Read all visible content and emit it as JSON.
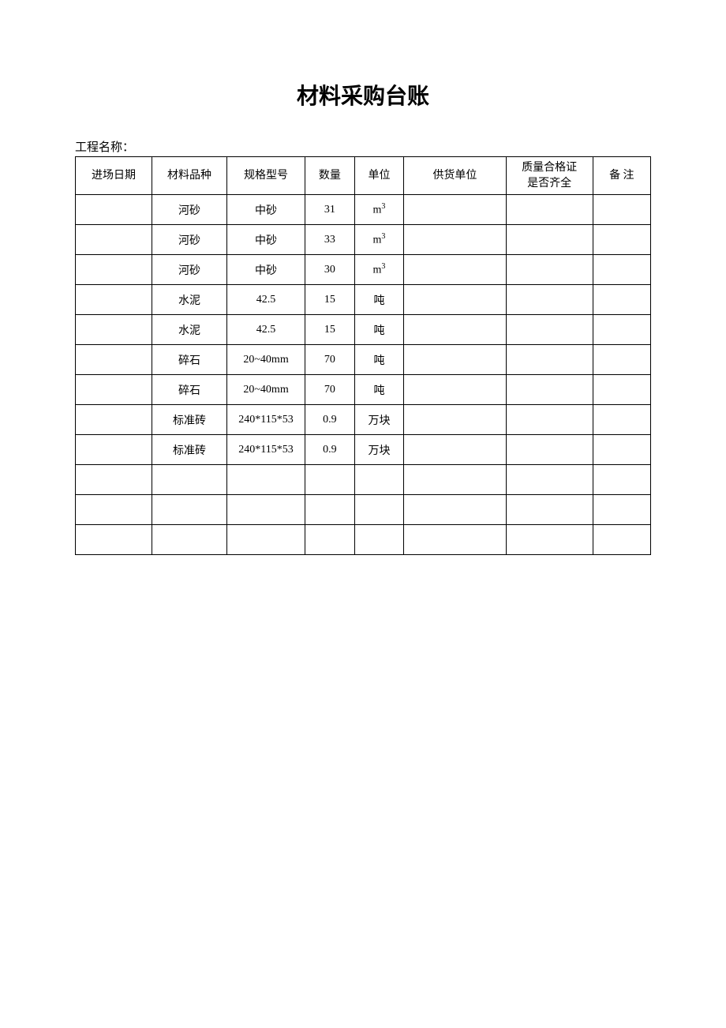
{
  "title": "材料采购台账",
  "project_label": "工程名称：",
  "table": {
    "columns": [
      "进场日期",
      "材料品种",
      "规格型号",
      "数量",
      "单位",
      "供货单位",
      "质量合格证\n是否齐全",
      "备  注"
    ],
    "rows": [
      {
        "date": "",
        "material": "河砂",
        "spec": "中砂",
        "qty": "31",
        "unit_html": "m³",
        "supplier": "",
        "cert": "",
        "note": ""
      },
      {
        "date": "",
        "material": "河砂",
        "spec": "中砂",
        "qty": "33",
        "unit_html": "m³",
        "supplier": "",
        "cert": "",
        "note": ""
      },
      {
        "date": "",
        "material": "河砂",
        "spec": "中砂",
        "qty": "30",
        "unit_html": "m³",
        "supplier": "",
        "cert": "",
        "note": ""
      },
      {
        "date": "",
        "material": "水泥",
        "spec": "42.5",
        "qty": "15",
        "unit_html": "吨",
        "supplier": "",
        "cert": "",
        "note": ""
      },
      {
        "date": "",
        "material": "水泥",
        "spec": "42.5",
        "qty": "15",
        "unit_html": "吨",
        "supplier": "",
        "cert": "",
        "note": ""
      },
      {
        "date": "",
        "material": "碎石",
        "spec": "20~40mm",
        "qty": "70",
        "unit_html": "吨",
        "supplier": "",
        "cert": "",
        "note": ""
      },
      {
        "date": "",
        "material": "碎石",
        "spec": "20~40mm",
        "qty": "70",
        "unit_html": "吨",
        "supplier": "",
        "cert": "",
        "note": ""
      },
      {
        "date": "",
        "material": "标准砖",
        "spec": "240*115*53",
        "qty": "0.9",
        "unit_html": "万块",
        "supplier": "",
        "cert": "",
        "note": ""
      },
      {
        "date": "",
        "material": "标准砖",
        "spec": "240*115*53",
        "qty": "0.9",
        "unit_html": "万块",
        "supplier": "",
        "cert": "",
        "note": ""
      },
      {
        "date": "",
        "material": "",
        "spec": "",
        "qty": "",
        "unit_html": "",
        "supplier": "",
        "cert": "",
        "note": ""
      },
      {
        "date": "",
        "material": "",
        "spec": "",
        "qty": "",
        "unit_html": "",
        "supplier": "",
        "cert": "",
        "note": ""
      },
      {
        "date": "",
        "material": "",
        "spec": "",
        "qty": "",
        "unit_html": "",
        "supplier": "",
        "cert": "",
        "note": ""
      }
    ],
    "column_widths": [
      "90px",
      "88px",
      "92px",
      "58px",
      "58px",
      "120px",
      "102px",
      "68px"
    ],
    "border_color": "#000000",
    "text_color": "#000000",
    "background_color": "#ffffff",
    "header_fontsize": 14,
    "cell_fontsize": 14,
    "title_fontsize": 28
  }
}
